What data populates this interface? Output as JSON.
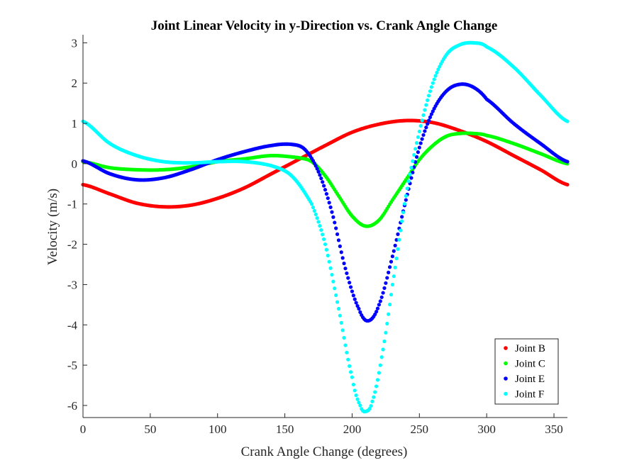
{
  "chart_data": {
    "type": "scatter",
    "title": "Joint Linear Velocity in y-Direction vs. Crank Angle Change",
    "xlabel": "Crank Angle Change (degrees)",
    "ylabel": "Velocity (m/s)",
    "xlim": [
      0,
      360
    ],
    "ylim": [
      -6.3,
      3.2
    ],
    "xticks": [
      0,
      50,
      100,
      150,
      200,
      250,
      300,
      350
    ],
    "yticks": [
      -6,
      -5,
      -4,
      -3,
      -2,
      -1,
      0,
      1,
      2,
      3
    ],
    "grid": false,
    "legend_position": "bottom-right",
    "series": [
      {
        "name": "Joint B",
        "color": "#ff0000",
        "points": [
          [
            0,
            -0.52
          ],
          [
            20,
            -0.75
          ],
          [
            40,
            -0.98
          ],
          [
            60,
            -1.07
          ],
          [
            80,
            -1.03
          ],
          [
            100,
            -0.86
          ],
          [
            120,
            -0.6
          ],
          [
            140,
            -0.25
          ],
          [
            160,
            0.1
          ],
          [
            180,
            0.45
          ],
          [
            200,
            0.78
          ],
          [
            220,
            0.98
          ],
          [
            240,
            1.07
          ],
          [
            260,
            1.02
          ],
          [
            280,
            0.82
          ],
          [
            300,
            0.55
          ],
          [
            320,
            0.2
          ],
          [
            340,
            -0.15
          ],
          [
            360,
            -0.52
          ]
        ]
      },
      {
        "name": "Joint C",
        "color": "#00ff00",
        "points": [
          [
            0,
            0.05
          ],
          [
            20,
            -0.1
          ],
          [
            40,
            -0.15
          ],
          [
            60,
            -0.15
          ],
          [
            80,
            -0.08
          ],
          [
            100,
            0.05
          ],
          [
            120,
            0.12
          ],
          [
            140,
            0.2
          ],
          [
            160,
            0.15
          ],
          [
            170,
            0.05
          ],
          [
            180,
            -0.3
          ],
          [
            190,
            -0.8
          ],
          [
            200,
            -1.3
          ],
          [
            210,
            -1.55
          ],
          [
            220,
            -1.4
          ],
          [
            230,
            -0.9
          ],
          [
            240,
            -0.4
          ],
          [
            250,
            0.1
          ],
          [
            260,
            0.45
          ],
          [
            270,
            0.68
          ],
          [
            280,
            0.75
          ],
          [
            290,
            0.75
          ],
          [
            300,
            0.7
          ],
          [
            320,
            0.5
          ],
          [
            340,
            0.25
          ],
          [
            360,
            0.0
          ]
        ]
      },
      {
        "name": "Joint E",
        "color": "#0000ff",
        "points": [
          [
            0,
            0.07
          ],
          [
            20,
            -0.25
          ],
          [
            40,
            -0.4
          ],
          [
            60,
            -0.35
          ],
          [
            80,
            -0.15
          ],
          [
            100,
            0.1
          ],
          [
            120,
            0.3
          ],
          [
            140,
            0.45
          ],
          [
            155,
            0.48
          ],
          [
            165,
            0.35
          ],
          [
            175,
            -0.2
          ],
          [
            185,
            -1.2
          ],
          [
            195,
            -2.6
          ],
          [
            205,
            -3.6
          ],
          [
            212,
            -3.9
          ],
          [
            220,
            -3.5
          ],
          [
            230,
            -2.3
          ],
          [
            240,
            -0.9
          ],
          [
            250,
            0.4
          ],
          [
            260,
            1.3
          ],
          [
            270,
            1.8
          ],
          [
            280,
            1.97
          ],
          [
            290,
            1.9
          ],
          [
            300,
            1.6
          ],
          [
            320,
            1.0
          ],
          [
            340,
            0.5
          ],
          [
            360,
            0.05
          ]
        ]
      },
      {
        "name": "Joint F",
        "color": "#00ffff",
        "points": [
          [
            0,
            1.05
          ],
          [
            20,
            0.5
          ],
          [
            40,
            0.2
          ],
          [
            60,
            0.05
          ],
          [
            80,
            0.02
          ],
          [
            100,
            0.05
          ],
          [
            120,
            0.05
          ],
          [
            140,
            -0.05
          ],
          [
            155,
            -0.3
          ],
          [
            170,
            -1.0
          ],
          [
            180,
            -2.0
          ],
          [
            190,
            -3.6
          ],
          [
            200,
            -5.3
          ],
          [
            206,
            -6.0
          ],
          [
            210,
            -6.15
          ],
          [
            215,
            -5.9
          ],
          [
            222,
            -4.8
          ],
          [
            230,
            -3.0
          ],
          [
            240,
            -0.8
          ],
          [
            250,
            0.8
          ],
          [
            260,
            2.0
          ],
          [
            270,
            2.7
          ],
          [
            280,
            2.95
          ],
          [
            290,
            3.0
          ],
          [
            300,
            2.9
          ],
          [
            320,
            2.4
          ],
          [
            340,
            1.7
          ],
          [
            360,
            1.05
          ]
        ]
      }
    ]
  }
}
